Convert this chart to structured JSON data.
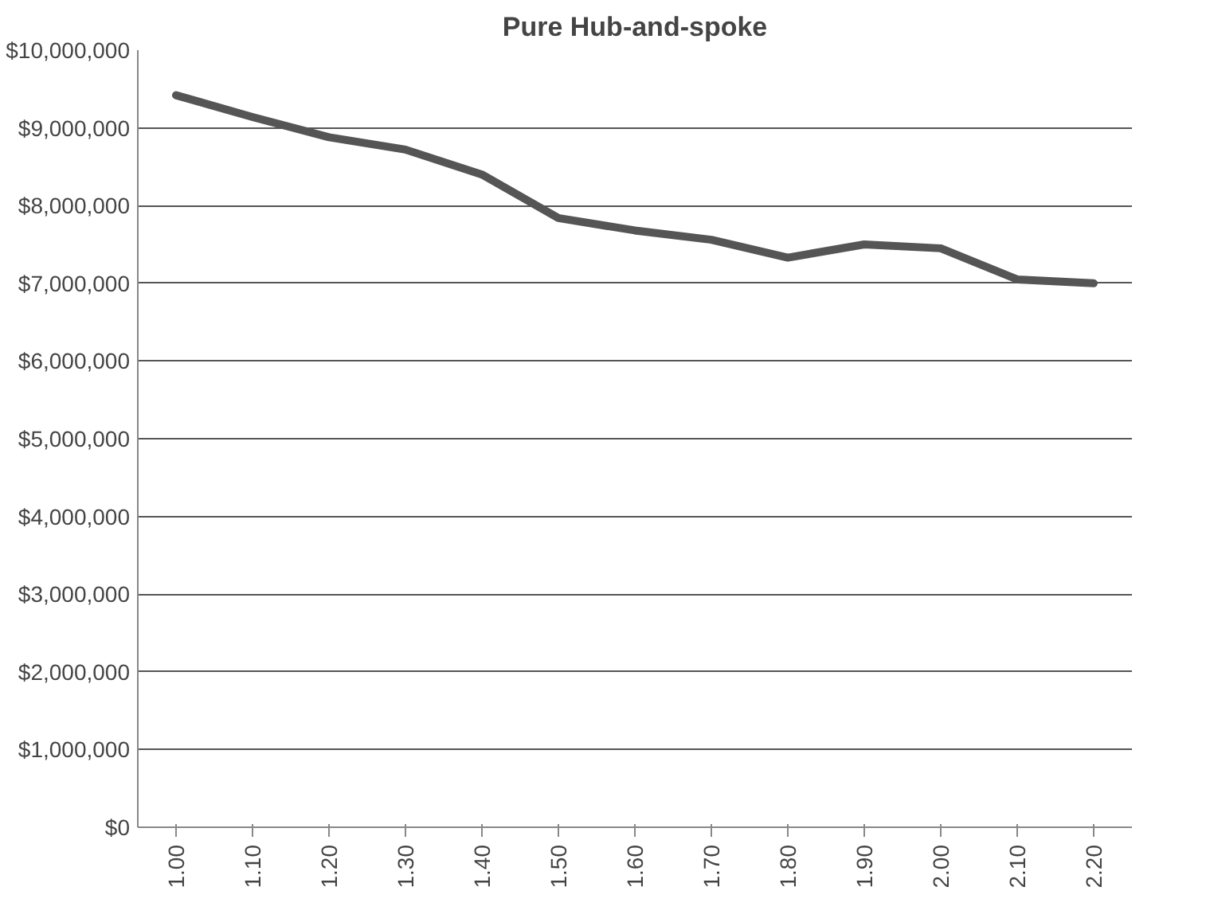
{
  "chart_data": {
    "type": "line",
    "title": "Pure Hub-and-spoke",
    "categories": [
      "1.00",
      "1.10",
      "1.20",
      "1.30",
      "1.40",
      "1.50",
      "1.60",
      "1.70",
      "1.80",
      "1.90",
      "2.00",
      "2.10",
      "2.20"
    ],
    "series": [
      {
        "color": "#555555",
        "values": [
          9420000,
          9140000,
          8880000,
          8720000,
          8400000,
          7840000,
          7680000,
          7560000,
          7330000,
          7500000,
          7450000,
          7050000,
          7000000
        ]
      }
    ],
    "ylim": [
      0,
      10000000
    ],
    "yticks": [
      {
        "value": 0,
        "label": "$0"
      },
      {
        "value": 1000000,
        "label": "$1,000,000"
      },
      {
        "value": 2000000,
        "label": "$2,000,000"
      },
      {
        "value": 3000000,
        "label": "$3,000,000"
      },
      {
        "value": 4000000,
        "label": "$4,000,000"
      },
      {
        "value": 5000000,
        "label": "$5,000,000"
      },
      {
        "value": 6000000,
        "label": "$6,000,000"
      },
      {
        "value": 7000000,
        "label": "$7,000,000"
      },
      {
        "value": 8000000,
        "label": "$8,000,000"
      },
      {
        "value": 9000000,
        "label": "$9,000,000"
      },
      {
        "value": 10000000,
        "label": "$10,000,000"
      }
    ],
    "grid": "y",
    "marker": "none",
    "line_style": "solid"
  }
}
